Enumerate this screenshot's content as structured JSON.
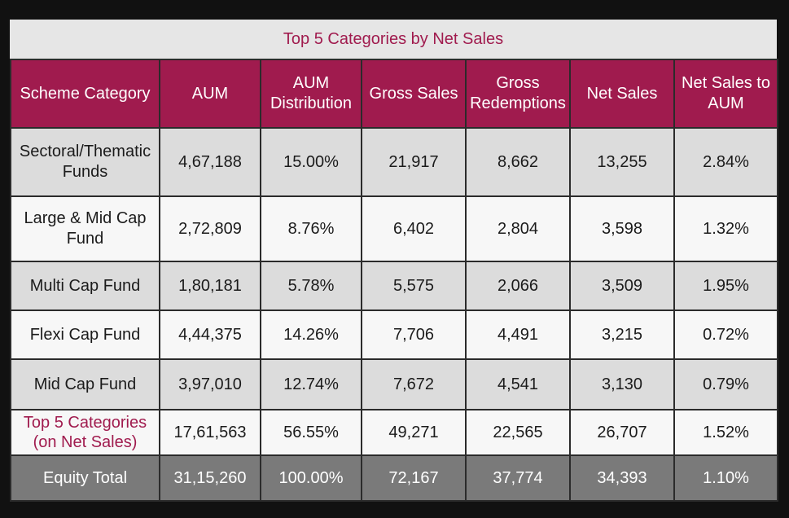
{
  "colors": {
    "header_bg": "#a01b4e",
    "title_text": "#a01b4e",
    "highlight_text": "#a01b4e"
  },
  "chart_data": {
    "type": "table",
    "title": "Top 5 Categories by Net Sales",
    "columns": [
      "Scheme Category",
      "AUM",
      "AUM Distribution",
      "Gross Sales",
      "Gross Redemptions",
      "Net Sales",
      "Net Sales to AUM"
    ],
    "rows": [
      [
        "Sectoral/Thematic Funds",
        "4,67,188",
        "15.00%",
        "21,917",
        "8,662",
        "13,255",
        "2.84%"
      ],
      [
        "Large & Mid Cap Fund",
        "2,72,809",
        "8.76%",
        "6,402",
        "2,804",
        "3,598",
        "1.32%"
      ],
      [
        "Multi Cap Fund",
        "1,80,181",
        "5.78%",
        "5,575",
        "2,066",
        "3,509",
        "1.95%"
      ],
      [
        "Flexi Cap Fund",
        "4,44,375",
        "14.26%",
        "7,706",
        "4,491",
        "3,215",
        "0.72%"
      ],
      [
        "Mid Cap Fund",
        "3,97,010",
        "12.74%",
        "7,672",
        "4,541",
        "3,130",
        "0.79%"
      ],
      [
        "Top 5 Categories (on Net Sales)",
        "17,61,563",
        "56.55%",
        "49,271",
        "22,565",
        "26,707",
        "1.52%"
      ],
      [
        "Equity Total",
        "31,15,260",
        "100.00%",
        "72,167",
        "37,774",
        "34,393",
        "1.10%"
      ]
    ]
  }
}
